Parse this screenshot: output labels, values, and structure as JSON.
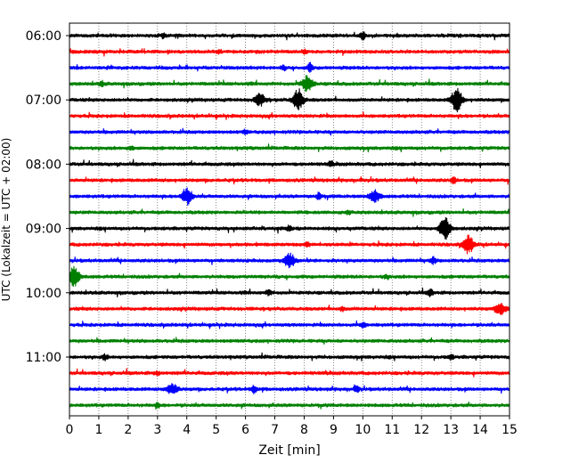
{
  "chart_data": {
    "type": "line",
    "title": "",
    "xlabel": "Zeit  [min]",
    "ylabel": "UTC (Lokalzeit = UTC + 02:00)",
    "xlim": [
      0,
      15
    ],
    "x_ticks": [
      0,
      1,
      2,
      3,
      4,
      5,
      6,
      7,
      8,
      9,
      10,
      11,
      12,
      13,
      14,
      15
    ],
    "x_tick_labels": [
      "0",
      "1",
      "2",
      "3",
      "4",
      "5",
      "6",
      "7",
      "8",
      "9",
      "10",
      "11",
      "12",
      "13",
      "14",
      "15"
    ],
    "y_tick_labels": [
      "06:00",
      "07:00",
      "08:00",
      "09:00",
      "10:00",
      "11:00"
    ],
    "grid": "vertical dotted",
    "trace_minutes": 15,
    "line_colors": [
      "#000000",
      "#ff0000",
      "#0000ff",
      "#008000"
    ],
    "traces": [
      {
        "start": "06:00",
        "color": "#000000",
        "events": [
          {
            "t": 10.0,
            "amp": 0.22
          },
          {
            "t": 3.2,
            "amp": 0.12
          }
        ]
      },
      {
        "start": "06:15",
        "color": "#ff0000",
        "events": [
          {
            "t": 8.0,
            "amp": 0.12
          },
          {
            "t": 5.1,
            "amp": 0.08
          }
        ]
      },
      {
        "start": "06:30",
        "color": "#0000ff",
        "events": [
          {
            "t": 8.2,
            "amp": 0.25
          },
          {
            "t": 7.3,
            "amp": 0.1
          }
        ]
      },
      {
        "start": "06:45",
        "color": "#008000",
        "events": [
          {
            "t": 8.1,
            "amp": 0.45
          },
          {
            "t": 1.1,
            "amp": 0.12
          }
        ]
      },
      {
        "start": "07:00",
        "color": "#000000",
        "events": [
          {
            "t": 7.8,
            "amp": 0.65
          },
          {
            "t": 13.2,
            "amp": 0.7
          },
          {
            "t": 6.5,
            "amp": 0.35
          }
        ]
      },
      {
        "start": "07:15",
        "color": "#ff0000",
        "events": []
      },
      {
        "start": "07:30",
        "color": "#0000ff",
        "events": [
          {
            "t": 6.0,
            "amp": 0.1
          }
        ]
      },
      {
        "start": "07:45",
        "color": "#008000",
        "events": [
          {
            "t": 2.1,
            "amp": 0.12
          }
        ]
      },
      {
        "start": "08:00",
        "color": "#000000",
        "events": [
          {
            "t": 8.9,
            "amp": 0.12
          }
        ]
      },
      {
        "start": "08:15",
        "color": "#ff0000",
        "events": [
          {
            "t": 13.1,
            "amp": 0.18
          }
        ]
      },
      {
        "start": "08:30",
        "color": "#0000ff",
        "events": [
          {
            "t": 4.0,
            "amp": 0.48
          },
          {
            "t": 10.4,
            "amp": 0.35
          },
          {
            "t": 8.5,
            "amp": 0.2
          }
        ]
      },
      {
        "start": "08:45",
        "color": "#008000",
        "events": [
          {
            "t": 9.5,
            "amp": 0.1
          }
        ]
      },
      {
        "start": "09:00",
        "color": "#000000",
        "events": [
          {
            "t": 12.8,
            "amp": 0.75
          },
          {
            "t": 7.5,
            "amp": 0.15
          }
        ]
      },
      {
        "start": "09:15",
        "color": "#ff0000",
        "events": [
          {
            "t": 13.6,
            "amp": 0.52
          },
          {
            "t": 8.1,
            "amp": 0.1
          }
        ]
      },
      {
        "start": "09:30",
        "color": "#0000ff",
        "events": [
          {
            "t": 7.5,
            "amp": 0.45
          },
          {
            "t": 12.4,
            "amp": 0.2
          }
        ]
      },
      {
        "start": "09:45",
        "color": "#008000",
        "events": [
          {
            "t": 0.15,
            "amp": 0.65
          },
          {
            "t": 10.8,
            "amp": 0.1
          }
        ]
      },
      {
        "start": "10:00",
        "color": "#000000",
        "events": [
          {
            "t": 12.3,
            "amp": 0.2
          },
          {
            "t": 6.8,
            "amp": 0.15
          }
        ]
      },
      {
        "start": "10:15",
        "color": "#ff0000",
        "events": [
          {
            "t": 14.7,
            "amp": 0.35
          },
          {
            "t": 9.3,
            "amp": 0.1
          }
        ]
      },
      {
        "start": "10:30",
        "color": "#0000ff",
        "events": [
          {
            "t": 10.0,
            "amp": 0.15
          }
        ]
      },
      {
        "start": "10:45",
        "color": "#008000",
        "events": []
      },
      {
        "start": "11:00",
        "color": "#000000",
        "events": [
          {
            "t": 1.2,
            "amp": 0.15
          },
          {
            "t": 13.0,
            "amp": 0.12
          }
        ]
      },
      {
        "start": "11:15",
        "color": "#ff0000",
        "events": [
          {
            "t": 3.0,
            "amp": 0.1
          }
        ]
      },
      {
        "start": "11:30",
        "color": "#0000ff",
        "events": [
          {
            "t": 3.5,
            "amp": 0.32
          },
          {
            "t": 6.3,
            "amp": 0.22
          },
          {
            "t": 9.8,
            "amp": 0.18
          }
        ]
      },
      {
        "start": "11:45",
        "color": "#008000",
        "events": [
          {
            "t": 3.0,
            "amp": 0.12
          }
        ]
      }
    ]
  }
}
